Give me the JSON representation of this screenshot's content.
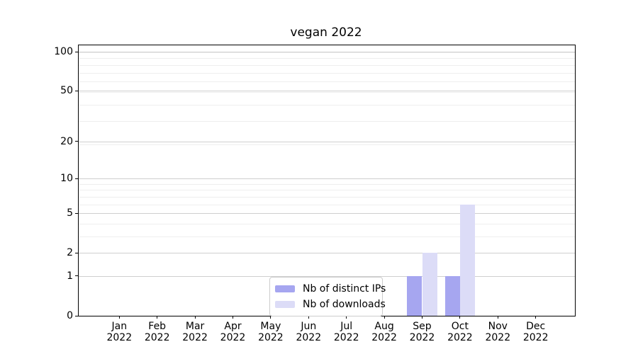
{
  "chart_data": {
    "type": "bar",
    "title": "vegan 2022",
    "categories": [
      "Jan 2022",
      "Feb 2022",
      "Mar 2022",
      "Apr 2022",
      "May 2022",
      "Jun 2022",
      "Jul 2022",
      "Aug 2022",
      "Sep 2022",
      "Oct 2022",
      "Nov 2022",
      "Dec 2022"
    ],
    "series": [
      {
        "name": "Nb of distinct IPs",
        "color": "#a6a6f0",
        "values": [
          0,
          0,
          0,
          0,
          0,
          0,
          0,
          0,
          1,
          1,
          0,
          0
        ]
      },
      {
        "name": "Nb of downloads",
        "color": "#dcdcf7",
        "values": [
          0,
          0,
          0,
          0,
          0,
          0,
          0,
          0,
          2,
          6,
          0,
          0
        ]
      }
    ],
    "xlabel": "",
    "ylabel": "",
    "yscale": "log1p",
    "yticks": [
      0,
      1,
      2,
      5,
      10,
      20,
      50,
      100
    ],
    "minor_grid_positions_1plusv": [
      2,
      3,
      4,
      5,
      6,
      7,
      8,
      9,
      10,
      20,
      30,
      40,
      50,
      60,
      70,
      80,
      90,
      100
    ],
    "ylim": [
      0,
      112
    ],
    "grid": "horizontal, major and minor",
    "legend_position": "lower center",
    "colors": {
      "major_grid": "#cfcfcf",
      "minor_grid": "#eeeeee",
      "spine": "#000000",
      "text": "#000000",
      "background": "#ffffff"
    }
  }
}
